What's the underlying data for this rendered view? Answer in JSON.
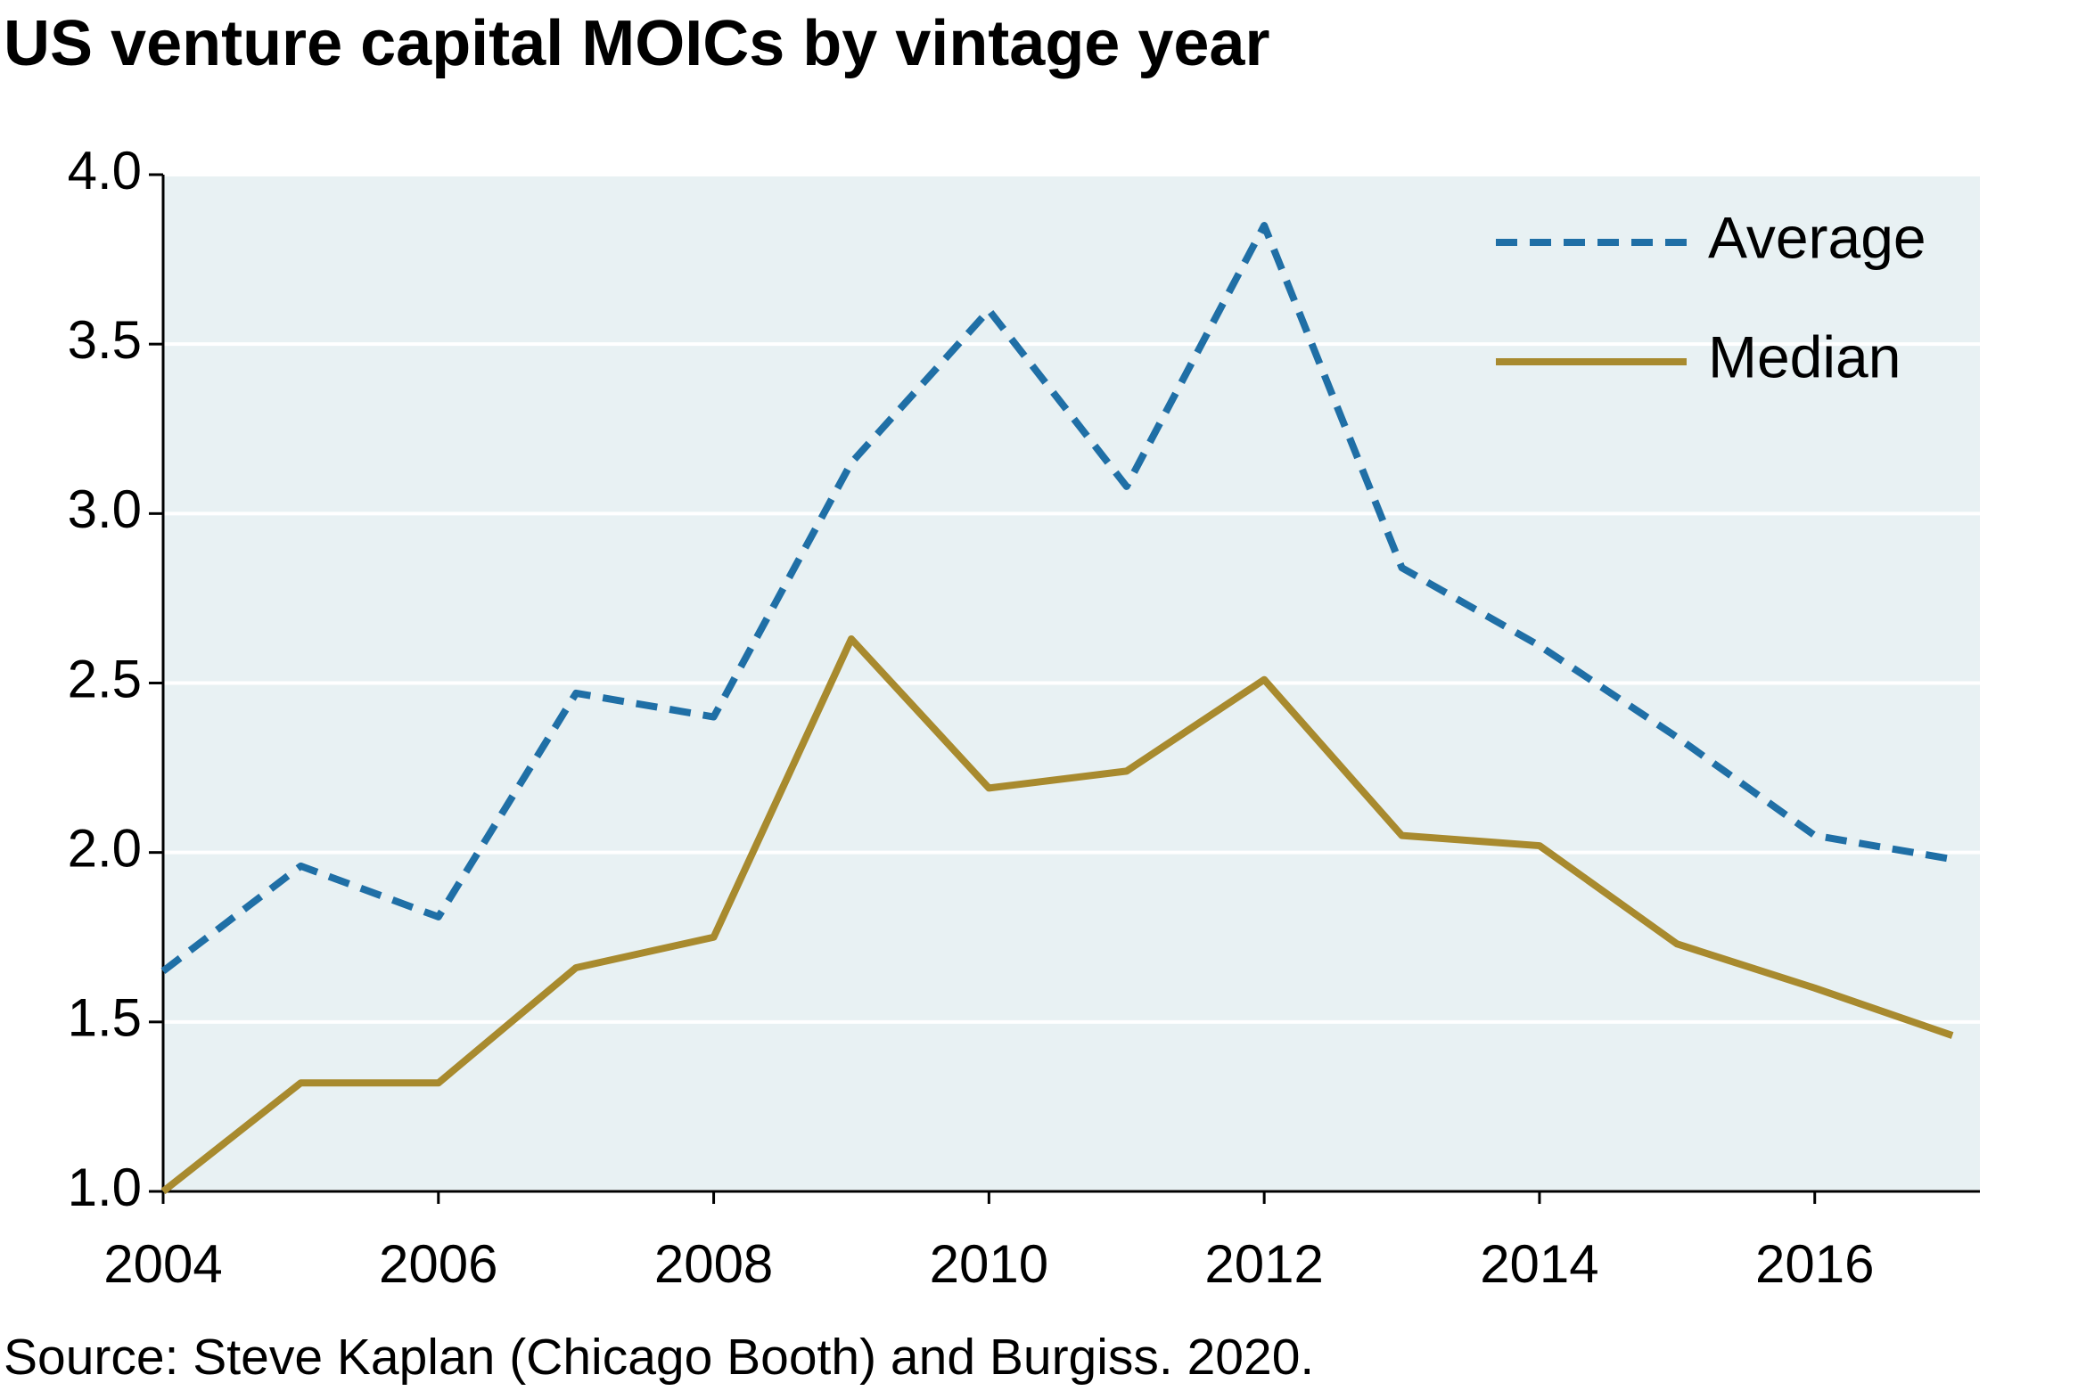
{
  "chart_data": {
    "type": "line",
    "title": "US venture capital MOICs by vintage year",
    "source": "Source: Steve Kaplan (Chicago Booth) and Burgiss. 2020.",
    "x": [
      2004,
      2005,
      2006,
      2007,
      2008,
      2009,
      2010,
      2011,
      2012,
      2013,
      2014,
      2015,
      2016,
      2017
    ],
    "series": [
      {
        "name": "Average",
        "color": "#1f6fa6",
        "dash": true,
        "values": [
          1.65,
          1.96,
          1.81,
          2.47,
          2.4,
          3.15,
          3.6,
          3.08,
          3.85,
          2.84,
          2.61,
          2.34,
          2.05,
          1.98
        ]
      },
      {
        "name": "Median",
        "color": "#a88a2e",
        "dash": false,
        "values": [
          1.0,
          1.32,
          1.32,
          1.66,
          1.75,
          2.63,
          2.19,
          2.24,
          2.51,
          2.05,
          2.02,
          1.73,
          1.6,
          1.46
        ]
      }
    ],
    "xlim": [
      2004,
      2017.2
    ],
    "xticks": [
      2004,
      2006,
      2008,
      2010,
      2012,
      2014,
      2016
    ],
    "ylim": [
      1,
      4
    ],
    "yticks": [
      {
        "value": 1,
        "label": "1.0"
      },
      1.5,
      {
        "value": 2,
        "label": "2.0"
      },
      2.5,
      {
        "value": 3,
        "label": "3.0"
      },
      3.5,
      {
        "value": 4,
        "label": "4.0"
      }
    ],
    "grid": true,
    "legend": "upper right",
    "background": "#e8f1f3"
  }
}
